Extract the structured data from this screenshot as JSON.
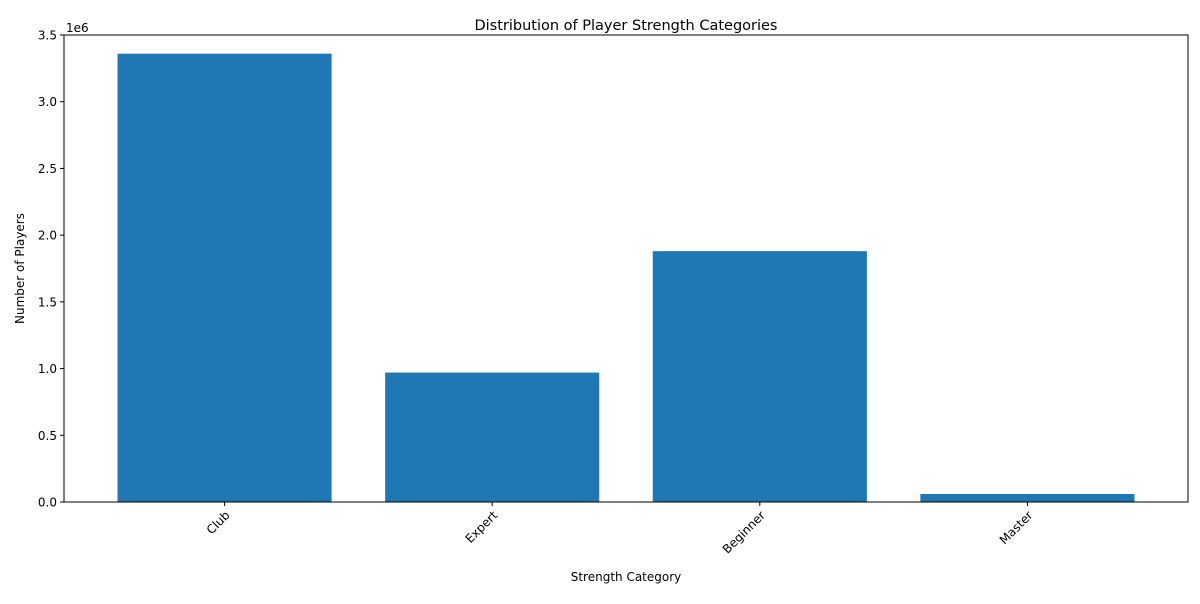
{
  "chart_data": {
    "type": "bar",
    "title": "Distribution of Player Strength Categories",
    "xlabel": "Strength Category",
    "ylabel": "Number of Players",
    "categories": [
      "Club",
      "Expert",
      "Beginner",
      "Master"
    ],
    "values": [
      3360000,
      970000,
      1880000,
      60000
    ],
    "ylim": [
      0,
      3500000
    ],
    "yticks": [
      0,
      500000,
      1000000,
      1500000,
      2000000,
      2500000,
      3000000,
      3500000
    ],
    "ytick_labels": [
      "0.0",
      "0.5",
      "1.0",
      "1.5",
      "2.0",
      "2.5",
      "3.0",
      "3.5"
    ],
    "offset_label": "1e6",
    "xtick_rotation_deg": 45,
    "grid": false,
    "bar_color": "#1f77b4"
  }
}
